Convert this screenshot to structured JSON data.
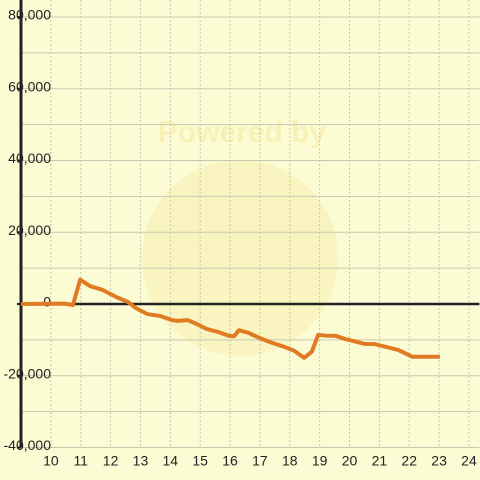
{
  "chart_data": {
    "type": "line",
    "watermark": "Powered by",
    "background": "#fcfcd4",
    "x": [
      9.0,
      10.47,
      10.74,
      10.98,
      11.31,
      11.71,
      12.25,
      12.58,
      12.82,
      13.22,
      13.65,
      14.06,
      14.26,
      14.59,
      14.89,
      15.23,
      15.6,
      15.97,
      16.13,
      16.3,
      16.6,
      17.0,
      17.4,
      17.84,
      18.14,
      18.48,
      18.74,
      18.95,
      19.18,
      19.55,
      19.82,
      20.12,
      20.49,
      20.86,
      21.19,
      21.63,
      22.1,
      23.03
    ],
    "series": [
      {
        "color": "#e07b24",
        "values": [
          0,
          100,
          -300,
          6800,
          5000,
          4000,
          1700,
          600,
          -1000,
          -2800,
          -3300,
          -4500,
          -4700,
          -4500,
          -5600,
          -7000,
          -7800,
          -8900,
          -9000,
          -7300,
          -8000,
          -9500,
          -10800,
          -12000,
          -13000,
          -15000,
          -13300,
          -8600,
          -8800,
          -8900,
          -9700,
          -10300,
          -11100,
          -11200,
          -11900,
          -12800,
          -14700,
          -14700
        ]
      }
    ],
    "xlim": [
      9,
      24.35
    ],
    "xticks": [
      10,
      11,
      12,
      13,
      14,
      15,
      16,
      17,
      18,
      19,
      20,
      21,
      22,
      23,
      24
    ],
    "ylim": [
      -40000,
      80000
    ],
    "yticks": [
      {
        "value": 80000,
        "label": "80,000"
      },
      {
        "value": 60000,
        "label": "60,000"
      },
      {
        "value": 40000,
        "label": "40,000"
      },
      {
        "value": 20000,
        "label": "20,000"
      },
      0,
      {
        "value": -20000,
        "label": "-20,000"
      },
      {
        "value": -40000,
        "label": "-40,000"
      }
    ],
    "y_minor_ticks": [
      70000,
      50000,
      30000,
      10000,
      -10000,
      -30000
    ],
    "grid": true
  }
}
